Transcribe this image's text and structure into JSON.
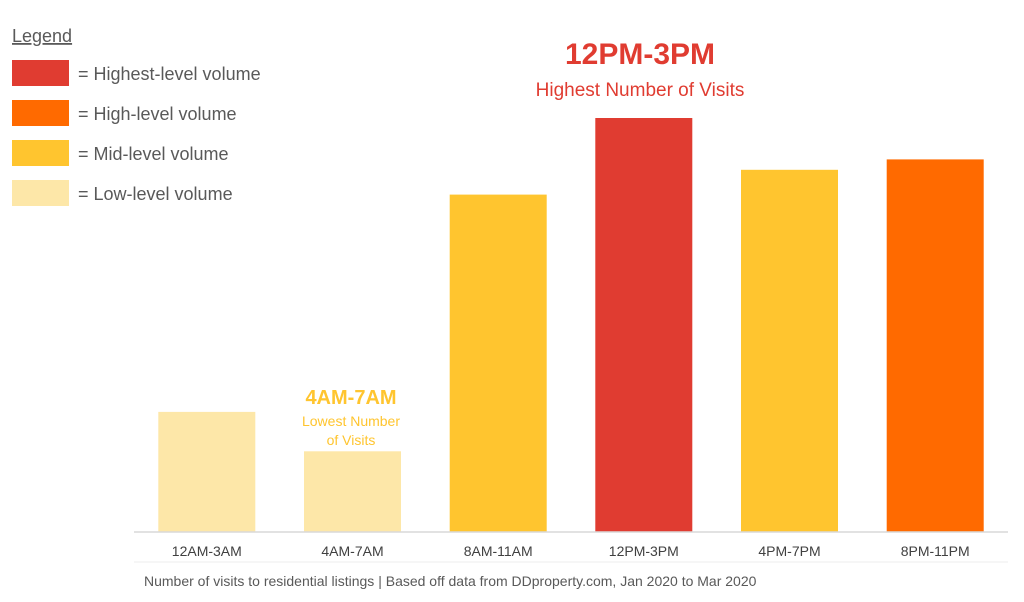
{
  "colors": {
    "highest": "#e03c31",
    "high": "#ff6a00",
    "mid": "#ffc52f",
    "low": "#fde7a8",
    "axis": "#d9d9d9",
    "text": "#595959"
  },
  "legend": {
    "title": "Legend",
    "items": [
      {
        "label": "= Highest-level volume",
        "level": "highest"
      },
      {
        "label": "= High-level volume",
        "level": "high"
      },
      {
        "label": "= Mid-level volume",
        "level": "mid"
      },
      {
        "label": "= Low-level volume",
        "level": "low"
      }
    ]
  },
  "callouts": {
    "highest": {
      "title": "12PM-3PM",
      "subtitle": "Highest Number of Visits"
    },
    "lowest": {
      "title": "4AM-7AM",
      "subtitle_line1": "Lowest Number",
      "subtitle_line2": "of Visits"
    }
  },
  "footnote": "Number of visits to residential listings | Based off data from DDproperty.com, Jan 2020 to Mar 2020",
  "chart_data": {
    "type": "bar",
    "categories": [
      "12AM-3AM",
      "4AM-7AM",
      "8AM-11AM",
      "12PM-3PM",
      "4PM-7PM",
      "8PM-11PM"
    ],
    "values": [
      29,
      19.5,
      81.5,
      100,
      87.5,
      90
    ],
    "levels": [
      "low",
      "low",
      "mid",
      "highest",
      "mid",
      "high"
    ],
    "ylim": [
      0,
      100
    ],
    "grid": false,
    "legend_position": "top-left",
    "note": "y values are relative visit volume (0-100), y-axis not labeled in the original"
  }
}
